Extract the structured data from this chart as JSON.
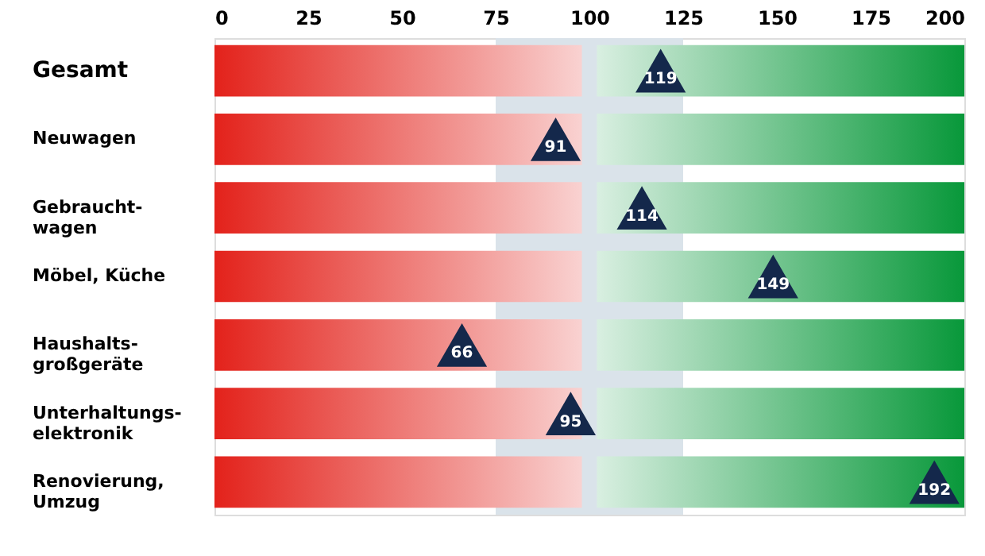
{
  "chart_data": {
    "type": "scatter",
    "orientation": "horizontal",
    "categories": [
      "Gesamt",
      "Neuwagen",
      "Gebraucht-\nwagen",
      "Möbel, Küche",
      "Haushalts-\ngroßgeräte",
      "Unterhaltungs-\nelektronik",
      "Renovierung,\nUmzug"
    ],
    "series": [
      {
        "type": "bar",
        "color": "#e3221b",
        "base": [
          0,
          0,
          0,
          0,
          0,
          0,
          0
        ],
        "values": [
          98,
          98,
          98,
          98,
          98,
          98,
          98
        ]
      },
      {
        "type": "bar",
        "color": "#08983a",
        "base": [
          102,
          102,
          102,
          102,
          102,
          102,
          102
        ],
        "values": [
          98,
          98,
          98,
          98,
          98,
          98,
          98
        ]
      },
      {
        "color": "#14284b",
        "values": [
          119,
          91,
          114,
          149,
          66,
          95,
          192
        ],
        "value_labels": [
          "119",
          "91",
          "114",
          "149",
          "66",
          "95",
          "192"
        ]
      }
    ],
    "marker": "triangle",
    "xlim": [
      0,
      200
    ],
    "xticks": [
      0,
      25,
      50,
      75,
      100,
      125,
      150,
      175,
      200
    ],
    "grid": false,
    "bands": [
      {
        "axis": "x",
        "from": 75,
        "to": 125,
        "color": "#dae3ea"
      }
    ]
  }
}
